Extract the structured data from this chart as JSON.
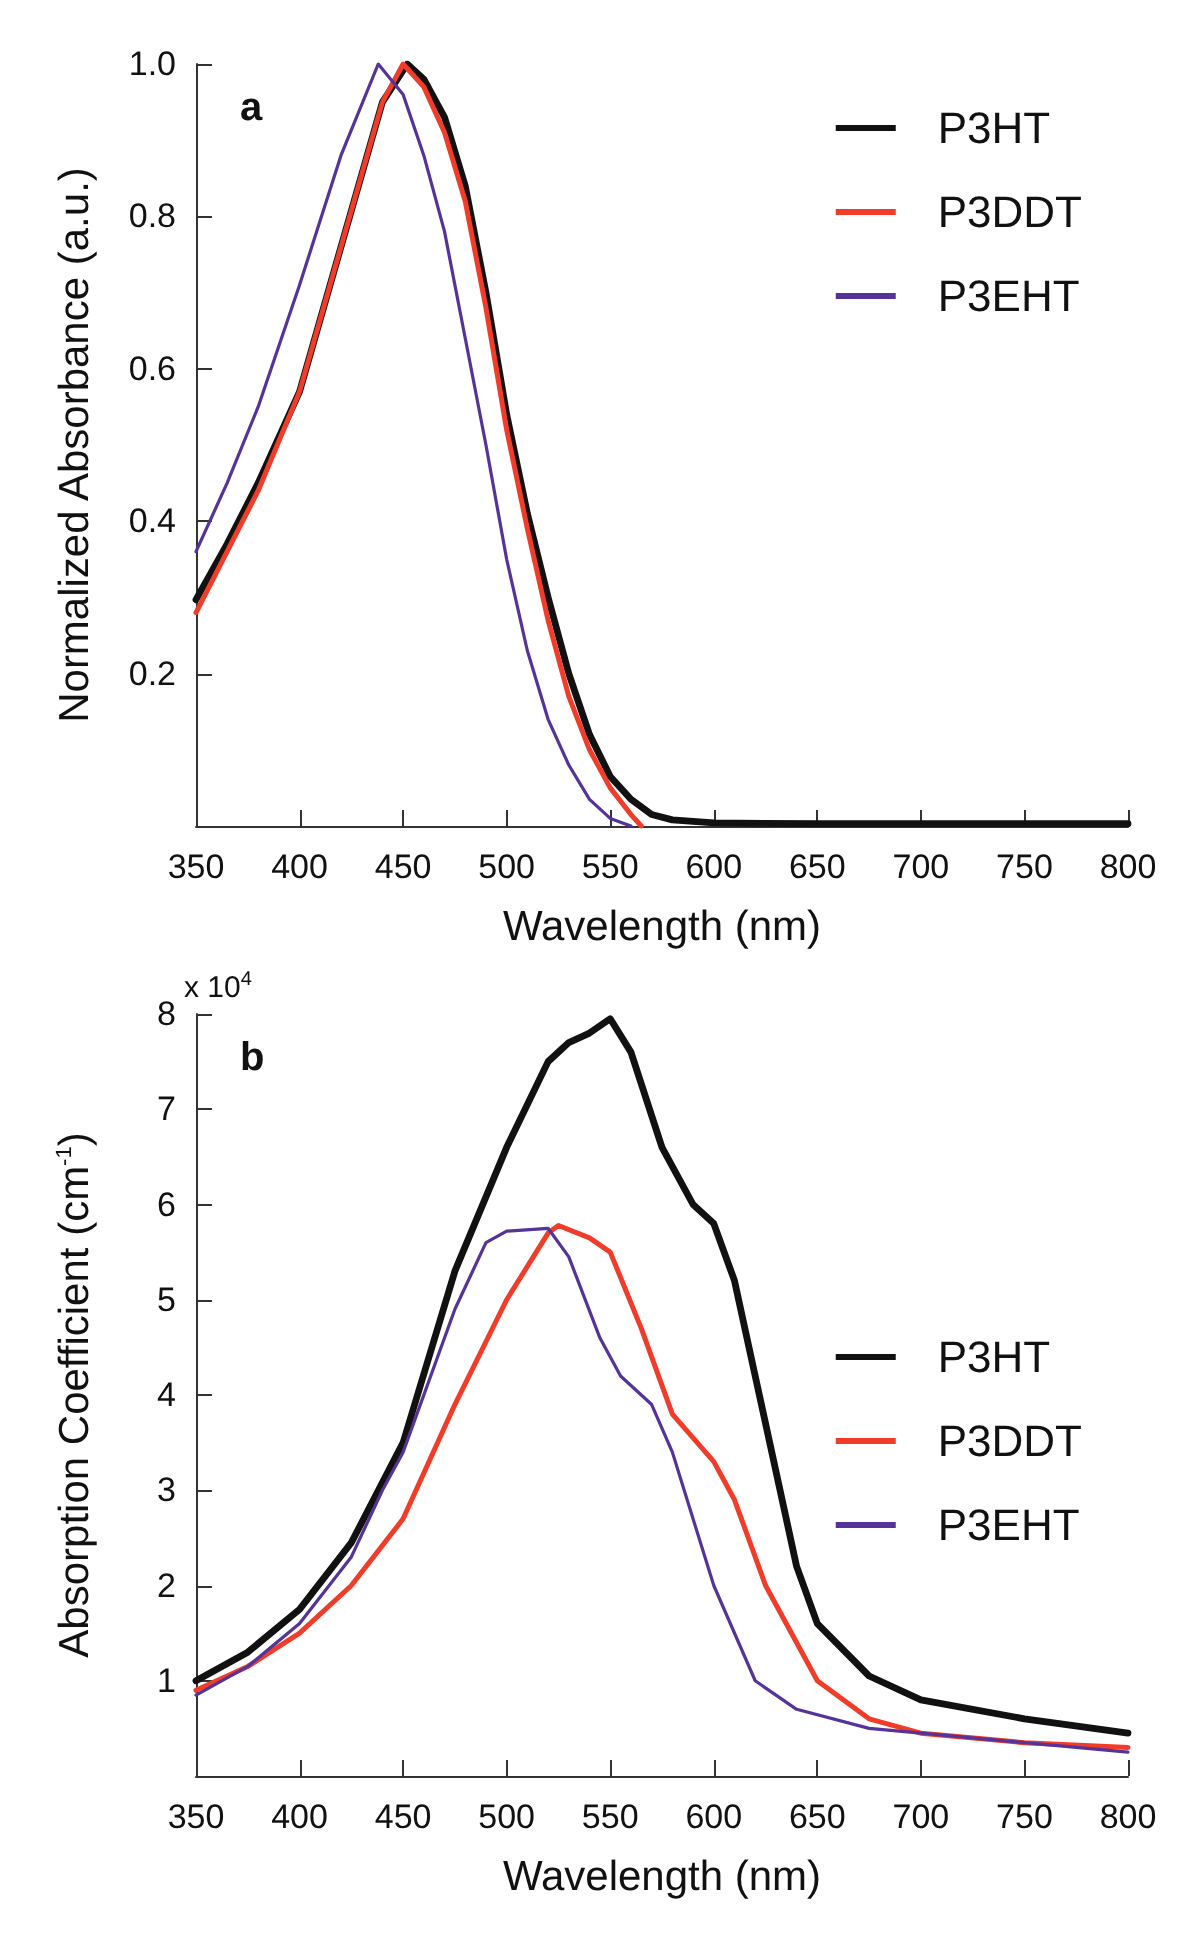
{
  "chart_data": [
    {
      "type": "line",
      "xlabel": "Wavelength (nm)",
      "ylabel": "Normalized Absorbance (a.u.)",
      "annotations": [
        "a"
      ],
      "xlim": [
        350,
        800
      ],
      "xticks": [
        350,
        400,
        450,
        500,
        550,
        600,
        650,
        700,
        750,
        800
      ],
      "ylim": [
        0,
        1
      ],
      "yticks": [
        0.2,
        0.4,
        0.6,
        0.8,
        {
          "value": 1,
          "label": "1.0"
        }
      ],
      "grid": false,
      "legend": "top right",
      "marker": "none",
      "line_style": "solid",
      "series": [
        {
          "name": "P3HT",
          "color": "#111111",
          "x": [
            350,
            365,
            380,
            400,
            420,
            440,
            452,
            460,
            470,
            480,
            490,
            500,
            510,
            520,
            530,
            540,
            550,
            560,
            570,
            580,
            600,
            650,
            700,
            750,
            800
          ],
          "values": [
            0.297,
            0.37,
            0.45,
            0.57,
            0.76,
            0.95,
            1.0,
            0.98,
            0.93,
            0.84,
            0.7,
            0.54,
            0.41,
            0.3,
            0.2,
            0.12,
            0.065,
            0.035,
            0.015,
            0.008,
            0.004,
            0.003,
            0.003,
            0.003,
            0.003
          ]
        },
        {
          "name": "P3DDT",
          "color": "#f03c28",
          "x": [
            350,
            365,
            380,
            400,
            420,
            440,
            450,
            460,
            470,
            480,
            490,
            500,
            510,
            520,
            530,
            540,
            550,
            560,
            565
          ],
          "values": [
            0.28,
            0.36,
            0.44,
            0.57,
            0.76,
            0.95,
            1.0,
            0.97,
            0.91,
            0.82,
            0.68,
            0.52,
            0.39,
            0.27,
            0.17,
            0.1,
            0.05,
            0.015,
            0.0
          ]
        },
        {
          "name": "P3EHT",
          "color": "#553399",
          "x": [
            350,
            365,
            380,
            400,
            420,
            438,
            450,
            460,
            470,
            480,
            490,
            500,
            510,
            520,
            530,
            540,
            550,
            560
          ],
          "values": [
            0.36,
            0.45,
            0.55,
            0.71,
            0.88,
            1.0,
            0.96,
            0.88,
            0.78,
            0.64,
            0.5,
            0.35,
            0.23,
            0.14,
            0.08,
            0.035,
            0.01,
            0.0
          ]
        }
      ]
    },
    {
      "type": "line",
      "xlabel": "Wavelength (nm)",
      "ylabel": "Absorption Coefficient (cm$^{-1}$)",
      "annotations": [
        "b",
        "x 10$^{4}$"
      ],
      "xlim": [
        350,
        800
      ],
      "xticks": [
        350,
        400,
        450,
        500,
        550,
        600,
        650,
        700,
        750,
        800
      ],
      "ylim": [
        0,
        8
      ],
      "yticks": [
        1,
        2,
        3,
        4,
        5,
        6,
        7,
        8
      ],
      "grid": false,
      "legend": "right",
      "marker": "none",
      "line_style": "solid",
      "series": [
        {
          "name": "P3HT",
          "color": "#111111",
          "x": [
            350,
            375,
            400,
            425,
            450,
            475,
            500,
            520,
            530,
            540,
            550,
            560,
            575,
            590,
            600,
            610,
            625,
            640,
            650,
            675,
            700,
            750,
            800
          ],
          "values": [
            1.0,
            1.3,
            1.75,
            2.45,
            3.5,
            5.3,
            6.6,
            7.5,
            7.7,
            7.8,
            7.95,
            7.6,
            6.6,
            6.0,
            5.8,
            5.2,
            3.7,
            2.2,
            1.6,
            1.05,
            0.8,
            0.6,
            0.45
          ]
        },
        {
          "name": "P3DDT",
          "color": "#f03c28",
          "x": [
            350,
            375,
            400,
            425,
            450,
            475,
            500,
            520,
            525,
            540,
            550,
            565,
            580,
            600,
            610,
            625,
            650,
            675,
            700,
            750,
            800
          ],
          "values": [
            0.9,
            1.15,
            1.5,
            2.0,
            2.7,
            3.9,
            5.0,
            5.7,
            5.78,
            5.65,
            5.5,
            4.7,
            3.8,
            3.3,
            2.9,
            2.0,
            1.0,
            0.6,
            0.45,
            0.35,
            0.3
          ]
        },
        {
          "name": "P3EHT",
          "color": "#553399",
          "x": [
            350,
            375,
            400,
            425,
            440,
            450,
            475,
            490,
            500,
            520,
            530,
            545,
            555,
            570,
            580,
            600,
            620,
            640,
            675,
            700,
            750,
            800
          ],
          "values": [
            0.85,
            1.15,
            1.6,
            2.3,
            3.0,
            3.4,
            4.9,
            5.6,
            5.72,
            5.75,
            5.45,
            4.6,
            4.2,
            3.9,
            3.4,
            2.0,
            1.0,
            0.7,
            0.5,
            0.45,
            0.35,
            0.25
          ]
        }
      ]
    }
  ]
}
